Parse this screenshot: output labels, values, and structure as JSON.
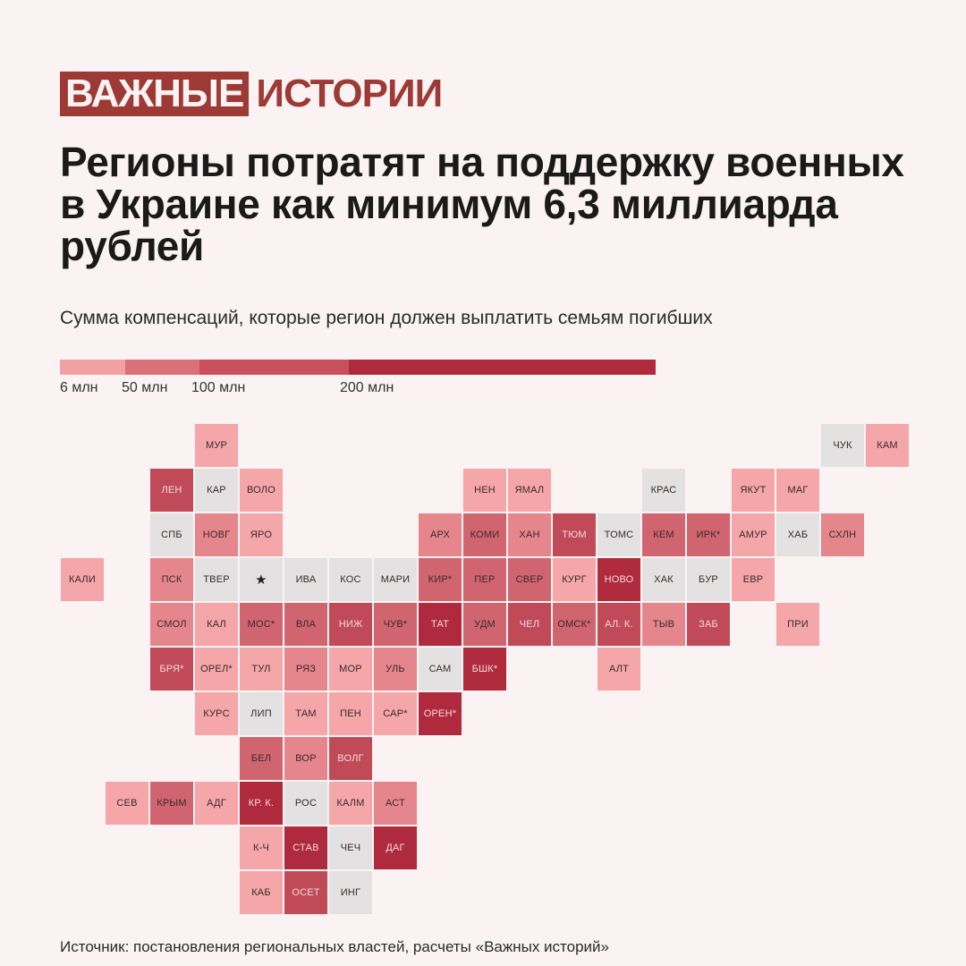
{
  "header": {
    "logo_part1": "ВАЖНЫЕ",
    "logo_part2": "ИСТОРИИ",
    "title": "Регионы потратят на поддержку военных в Украине как минимум 6,3 миллиарда рублей",
    "subtitle": "Сумма компенсаций, которые регион должен выплатить семьям погибших"
  },
  "legend": {
    "labels": [
      "6 млн",
      "50 млн",
      "100 млн",
      "200 млн"
    ],
    "colors": [
      "#f1a1a3",
      "#dc7077",
      "#c8505c",
      "#b02a3e"
    ]
  },
  "colors": {
    "background": "#fbf3f3",
    "brand": "#9e3a35",
    "nodata": "#e3e1e2",
    "level0": "#f4a6a9",
    "level1": "#e5868c",
    "level2": "#d06570",
    "level3": "#c04a58",
    "level4": "#b02a3e"
  },
  "chart_data": {
    "type": "heatmap",
    "title": "Регионы потратят на поддержку военных в Украине как минимум 6,3 миллиарда рублей",
    "subtitle": "Сумма компенсаций, которые регион должен выплатить семьям погибших",
    "scale_labels": [
      "6 млн",
      "50 млн",
      "100 млн",
      "200 млн"
    ],
    "grid": [
      {
        "label": "МУР",
        "col": 3,
        "row": 0,
        "level": 0
      },
      {
        "label": "ЧУК",
        "col": 17,
        "row": 0,
        "level": null
      },
      {
        "label": "КАМ",
        "col": 18,
        "row": 0,
        "level": 0
      },
      {
        "label": "ЛЕН",
        "col": 2,
        "row": 1,
        "level": 3
      },
      {
        "label": "КАР",
        "col": 3,
        "row": 1,
        "level": null
      },
      {
        "label": "ВОЛО",
        "col": 4,
        "row": 1,
        "level": 0
      },
      {
        "label": "НЕН",
        "col": 9,
        "row": 1,
        "level": 0
      },
      {
        "label": "ЯМАЛ",
        "col": 10,
        "row": 1,
        "level": 0
      },
      {
        "label": "КРАС",
        "col": 13,
        "row": 1,
        "level": null
      },
      {
        "label": "ЯКУТ",
        "col": 15,
        "row": 1,
        "level": 0
      },
      {
        "label": "МАГ",
        "col": 16,
        "row": 1,
        "level": 0
      },
      {
        "label": "СПБ",
        "col": 2,
        "row": 2,
        "level": null
      },
      {
        "label": "НОВГ",
        "col": 3,
        "row": 2,
        "level": 1
      },
      {
        "label": "ЯРО",
        "col": 4,
        "row": 2,
        "level": 0
      },
      {
        "label": "АРХ",
        "col": 8,
        "row": 2,
        "level": 1
      },
      {
        "label": "КОМИ",
        "col": 9,
        "row": 2,
        "level": 2
      },
      {
        "label": "ХАН",
        "col": 10,
        "row": 2,
        "level": 1
      },
      {
        "label": "ТЮМ",
        "col": 11,
        "row": 2,
        "level": 3
      },
      {
        "label": "ТОМС",
        "col": 12,
        "row": 2,
        "level": null
      },
      {
        "label": "КЕМ",
        "col": 13,
        "row": 2,
        "level": 2
      },
      {
        "label": "ИРК*",
        "col": 14,
        "row": 2,
        "level": 2
      },
      {
        "label": "АМУР",
        "col": 15,
        "row": 2,
        "level": 0
      },
      {
        "label": "ХАБ",
        "col": 16,
        "row": 2,
        "level": null
      },
      {
        "label": "СХЛН",
        "col": 17,
        "row": 2,
        "level": 1
      },
      {
        "label": "КАЛИ",
        "col": 0,
        "row": 3,
        "level": 0
      },
      {
        "label": "ПСК",
        "col": 2,
        "row": 3,
        "level": 1
      },
      {
        "label": "ТВЕР",
        "col": 3,
        "row": 3,
        "level": null
      },
      {
        "label": "★",
        "col": 4,
        "row": 3,
        "level": null,
        "capital": true
      },
      {
        "label": "ИВА",
        "col": 5,
        "row": 3,
        "level": null
      },
      {
        "label": "КОС",
        "col": 6,
        "row": 3,
        "level": null
      },
      {
        "label": "МАРИ",
        "col": 7,
        "row": 3,
        "level": null
      },
      {
        "label": "КИР*",
        "col": 8,
        "row": 3,
        "level": 2
      },
      {
        "label": "ПЕР",
        "col": 9,
        "row": 3,
        "level": 2
      },
      {
        "label": "СВЕР",
        "col": 10,
        "row": 3,
        "level": 2
      },
      {
        "label": "КУРГ",
        "col": 11,
        "row": 3,
        "level": 0
      },
      {
        "label": "НОВО",
        "col": 12,
        "row": 3,
        "level": 4
      },
      {
        "label": "ХАК",
        "col": 13,
        "row": 3,
        "level": null
      },
      {
        "label": "БУР",
        "col": 14,
        "row": 3,
        "level": null
      },
      {
        "label": "ЕВР",
        "col": 15,
        "row": 3,
        "level": 0
      },
      {
        "label": "СМОЛ",
        "col": 2,
        "row": 4,
        "level": 1
      },
      {
        "label": "КАЛ",
        "col": 3,
        "row": 4,
        "level": 0
      },
      {
        "label": "МОС*",
        "col": 4,
        "row": 4,
        "level": 2
      },
      {
        "label": "ВЛА",
        "col": 5,
        "row": 4,
        "level": 2
      },
      {
        "label": "НИЖ",
        "col": 6,
        "row": 4,
        "level": 3
      },
      {
        "label": "ЧУВ*",
        "col": 7,
        "row": 4,
        "level": 2
      },
      {
        "label": "ТАТ",
        "col": 8,
        "row": 4,
        "level": 4
      },
      {
        "label": "УДМ",
        "col": 9,
        "row": 4,
        "level": 2
      },
      {
        "label": "ЧЕЛ",
        "col": 10,
        "row": 4,
        "level": 3
      },
      {
        "label": "ОМСК*",
        "col": 11,
        "row": 4,
        "level": 2
      },
      {
        "label": "АЛ. К.",
        "col": 12,
        "row": 4,
        "level": 3
      },
      {
        "label": "ТЫВ",
        "col": 13,
        "row": 4,
        "level": 1
      },
      {
        "label": "ЗАБ",
        "col": 14,
        "row": 4,
        "level": 3
      },
      {
        "label": "ПРИ",
        "col": 16,
        "row": 4,
        "level": 0
      },
      {
        "label": "БРЯ*",
        "col": 2,
        "row": 5,
        "level": 3
      },
      {
        "label": "ОРЕЛ*",
        "col": 3,
        "row": 5,
        "level": 0
      },
      {
        "label": "ТУЛ",
        "col": 4,
        "row": 5,
        "level": 0
      },
      {
        "label": "РЯЗ",
        "col": 5,
        "row": 5,
        "level": 1
      },
      {
        "label": "МОР",
        "col": 6,
        "row": 5,
        "level": 0
      },
      {
        "label": "УЛЬ",
        "col": 7,
        "row": 5,
        "level": 1
      },
      {
        "label": "САМ",
        "col": 8,
        "row": 5,
        "level": null
      },
      {
        "label": "БШК*",
        "col": 9,
        "row": 5,
        "level": 4
      },
      {
        "label": "АЛТ",
        "col": 12,
        "row": 5,
        "level": 0
      },
      {
        "label": "КУРС",
        "col": 3,
        "row": 6,
        "level": 0
      },
      {
        "label": "ЛИП",
        "col": 4,
        "row": 6,
        "level": null
      },
      {
        "label": "ТАМ",
        "col": 5,
        "row": 6,
        "level": 0
      },
      {
        "label": "ПЕН",
        "col": 6,
        "row": 6,
        "level": 0
      },
      {
        "label": "САР*",
        "col": 7,
        "row": 6,
        "level": 0
      },
      {
        "label": "ОРЕН*",
        "col": 8,
        "row": 6,
        "level": 4
      },
      {
        "label": "БЕЛ",
        "col": 4,
        "row": 7,
        "level": 2
      },
      {
        "label": "ВОР",
        "col": 5,
        "row": 7,
        "level": 1
      },
      {
        "label": "ВОЛГ",
        "col": 6,
        "row": 7,
        "level": 3
      },
      {
        "label": "СЕВ",
        "col": 1,
        "row": 8,
        "level": 0
      },
      {
        "label": "КРЫМ",
        "col": 2,
        "row": 8,
        "level": 2
      },
      {
        "label": "АДГ",
        "col": 3,
        "row": 8,
        "level": 0
      },
      {
        "label": "КР. К.",
        "col": 4,
        "row": 8,
        "level": 4
      },
      {
        "label": "РОС",
        "col": 5,
        "row": 8,
        "level": null
      },
      {
        "label": "КАЛМ",
        "col": 6,
        "row": 8,
        "level": 0
      },
      {
        "label": "АСТ",
        "col": 7,
        "row": 8,
        "level": 1
      },
      {
        "label": "К-Ч",
        "col": 4,
        "row": 9,
        "level": 0
      },
      {
        "label": "СТАВ",
        "col": 5,
        "row": 9,
        "level": 4
      },
      {
        "label": "ЧЕЧ",
        "col": 6,
        "row": 9,
        "level": null
      },
      {
        "label": "ДАГ",
        "col": 7,
        "row": 9,
        "level": 4
      },
      {
        "label": "КАБ",
        "col": 4,
        "row": 10,
        "level": 0
      },
      {
        "label": "ОСЕТ",
        "col": 5,
        "row": 10,
        "level": 3
      },
      {
        "label": "ИНГ",
        "col": 6,
        "row": 10,
        "level": null
      }
    ]
  },
  "footer": {
    "source": "Источник: постановления региональных властей, расчеты «Важных историй»"
  }
}
